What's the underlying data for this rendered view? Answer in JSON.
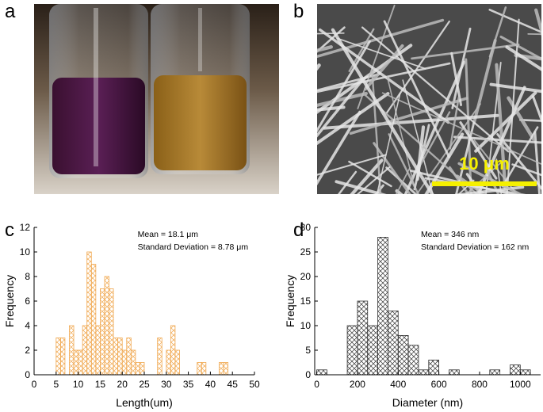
{
  "panel_labels": [
    "a",
    "b",
    "c",
    "d"
  ],
  "scale_bar": "10 μm",
  "chart_data": [
    {
      "type": "histogram",
      "xlabel": "Length(um)",
      "ylabel": "Frequency",
      "annotations": [
        "Mean = 18.1 μm",
        "Standard Deviation = 8.78 μm"
      ],
      "bins": [
        5,
        6,
        7,
        8,
        9,
        10,
        11,
        12,
        13,
        14,
        15,
        16,
        17,
        18,
        19,
        20,
        21,
        22,
        23,
        24,
        25,
        26,
        27,
        28,
        29,
        30,
        31,
        32,
        33,
        34,
        35,
        36,
        37,
        38,
        39,
        40,
        41,
        42,
        43,
        44
      ],
      "values": [
        3,
        3,
        0,
        4,
        2,
        2,
        4,
        10,
        9,
        4,
        7,
        8,
        7,
        3,
        3,
        2,
        3,
        2,
        1,
        1,
        0,
        0,
        0,
        3,
        0,
        2,
        4,
        2,
        0,
        0,
        0,
        0,
        1,
        1,
        0,
        0,
        0,
        1,
        1
      ],
      "color": "#f0a850",
      "xlim": [
        0,
        50
      ],
      "ylim": [
        0,
        12
      ],
      "xticks": [
        0,
        5,
        10,
        15,
        20,
        25,
        30,
        35,
        40,
        45,
        50
      ],
      "yticks": [
        0,
        2,
        4,
        6,
        8,
        10,
        12
      ]
    },
    {
      "type": "histogram",
      "xlabel": "Diameter (nm)",
      "ylabel": "Frequency",
      "annotations": [
        "Mean = 346 nm",
        "Standard Deviation = 162 nm"
      ],
      "bins": [
        0,
        50,
        100,
        150,
        200,
        250,
        300,
        350,
        400,
        450,
        500,
        550,
        600,
        650,
        700,
        750,
        800,
        850,
        900,
        950,
        1000,
        1050
      ],
      "values": [
        1,
        0,
        0,
        10,
        15,
        10,
        28,
        13,
        8,
        6,
        1,
        3,
        0,
        1,
        0,
        0,
        0,
        1,
        0,
        2,
        1
      ],
      "color": "#333333",
      "xlim": [
        -10,
        1100
      ],
      "ylim": [
        0,
        30
      ],
      "xticks": [
        0,
        200,
        400,
        600,
        800,
        1000
      ],
      "yticks": [
        0,
        5,
        10,
        15,
        20,
        25,
        30
      ]
    }
  ]
}
